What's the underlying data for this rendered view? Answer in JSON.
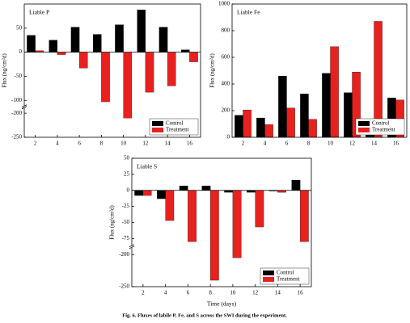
{
  "chart_data": [
    {
      "type": "bar",
      "title": "Liable P",
      "ylabel": "Flux (ng/cm²d)",
      "x": [
        2,
        4,
        6,
        8,
        10,
        12,
        14,
        16
      ],
      "xlim": [
        1,
        17
      ],
      "xticks": [
        2,
        4,
        6,
        8,
        10,
        12,
        14,
        16
      ],
      "ylim": [
        -250,
        100
      ],
      "ybreak": [
        -190,
        -110
      ],
      "yticks": [
        -250,
        -200,
        -100,
        -50,
        0,
        50
      ],
      "legend": "lower right",
      "series": [
        {
          "name": "Control",
          "color": "#000000",
          "values": [
            35,
            25,
            52,
            37,
            57,
            88,
            52,
            5
          ]
        },
        {
          "name": "Treatment",
          "color": "#e8211e",
          "values": [
            3,
            -5,
            -33,
            -103,
            -210,
            -83,
            -70,
            -20
          ]
        }
      ]
    },
    {
      "type": "bar",
      "title": "Liable Fe",
      "ylabel": "Flux (ng/cm²d)",
      "x": [
        2,
        4,
        6,
        8,
        10,
        12,
        14,
        16
      ],
      "xlim": [
        1,
        17
      ],
      "xticks": [
        2,
        4,
        6,
        8,
        10,
        12,
        14,
        16
      ],
      "ylim": [
        0,
        1000
      ],
      "yticks": [
        0,
        200,
        400,
        600,
        800,
        1000
      ],
      "legend": "lower right",
      "series": [
        {
          "name": "Control",
          "color": "#000000",
          "values": [
            165,
            145,
            460,
            325,
            480,
            335,
            60,
            295
          ]
        },
        {
          "name": "Treatment",
          "color": "#e8211e",
          "values": [
            205,
            95,
            220,
            135,
            680,
            490,
            870,
            280
          ]
        }
      ]
    },
    {
      "type": "bar",
      "title": "Liable S",
      "ylabel": "Flux (ng/cm²d)",
      "xlabel": "Time (days)",
      "x": [
        2,
        4,
        6,
        8,
        10,
        12,
        14,
        16
      ],
      "xlim": [
        1,
        17
      ],
      "xticks": [
        2,
        4,
        6,
        8,
        10,
        12,
        14,
        16
      ],
      "ylim": [
        -250,
        50
      ],
      "ybreak": [
        -190,
        -85
      ],
      "yticks": [
        -250,
        -200,
        -75,
        -50,
        -25,
        0,
        25,
        50
      ],
      "legend": "lower right",
      "series": [
        {
          "name": "Control",
          "color": "#000000",
          "values": [
            -8,
            -13,
            7,
            7,
            -3,
            -3,
            -1,
            16
          ]
        },
        {
          "name": "Treatment",
          "color": "#e8211e",
          "values": [
            -8,
            -47,
            -80,
            -240,
            -205,
            -57,
            -3,
            -80
          ]
        }
      ]
    }
  ],
  "caption": "Fig. 6. Fluxes of labile P, Fe, and S across the SWI during the experiment."
}
